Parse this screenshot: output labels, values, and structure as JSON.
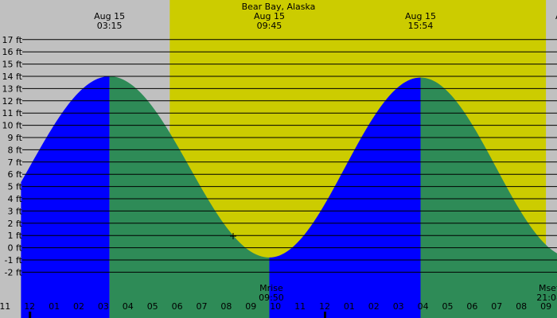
{
  "chart_data": {
    "type": "area",
    "title": "Bear Bay, Alaska",
    "ylim": [
      -3,
      18
    ],
    "xlim": [
      -0.35,
      22.1
    ],
    "grid": true,
    "y_ticks": [
      -2,
      -1,
      0,
      1,
      2,
      3,
      4,
      5,
      6,
      7,
      8,
      9,
      10,
      11,
      12,
      13,
      14,
      15,
      16,
      17
    ],
    "y_unit": "ft",
    "x_ticks": [
      {
        "hour": 0,
        "label": "12"
      },
      {
        "hour": 1,
        "label": "01"
      },
      {
        "hour": 2,
        "label": "02"
      },
      {
        "hour": 3,
        "label": "03"
      },
      {
        "hour": 4,
        "label": "04"
      },
      {
        "hour": 5,
        "label": "05"
      },
      {
        "hour": 6,
        "label": "06"
      },
      {
        "hour": 7,
        "label": "07"
      },
      {
        "hour": 8,
        "label": "08"
      },
      {
        "hour": 9,
        "label": "09"
      },
      {
        "hour": 10,
        "label": "10"
      },
      {
        "hour": 11,
        "label": "11"
      },
      {
        "hour": 12,
        "label": "12"
      },
      {
        "hour": 13,
        "label": "01"
      },
      {
        "hour": 14,
        "label": "02"
      },
      {
        "hour": 15,
        "label": "03"
      },
      {
        "hour": 16,
        "label": "04"
      },
      {
        "hour": 17,
        "label": "05"
      },
      {
        "hour": 18,
        "label": "06"
      },
      {
        "hour": 19,
        "label": "07"
      },
      {
        "hour": 20,
        "label": "08"
      },
      {
        "hour": 21,
        "label": "09"
      }
    ],
    "x_tick_edge_left": {
      "hour": -1,
      "label": "11"
    },
    "daylight": {
      "start_hour": 5.7,
      "end_hour": 21.0
    },
    "tide_events": [
      {
        "date": "Aug 15",
        "time": "03:15",
        "hour": 3.25,
        "height_ft": 14.0,
        "type": "high"
      },
      {
        "date": "Aug 15",
        "time": "09:45",
        "hour": 9.75,
        "height_ft": -0.8,
        "type": "low"
      },
      {
        "date": "Aug 15",
        "time": "15:54",
        "hour": 15.9,
        "height_ft": 13.9,
        "type": "high"
      }
    ],
    "tide_curve_endpoints": {
      "start": {
        "hour": -0.35,
        "height_ft": 3.3
      },
      "end": {
        "hour": 22.1,
        "height_ft": 2.2
      }
    },
    "moon_events": [
      {
        "label": "Mrise",
        "time": "09:50",
        "hour": 9.83
      },
      {
        "label": "Mset",
        "time": "21:08",
        "hour": 21.13
      }
    ],
    "edge_header_fragment": "A",
    "colors": {
      "background": "#c0c0c0",
      "daylight": "#cccc00",
      "rising_tide": "#0000ff",
      "falling_tide": "#2e8b57",
      "grid": "#000000"
    }
  }
}
